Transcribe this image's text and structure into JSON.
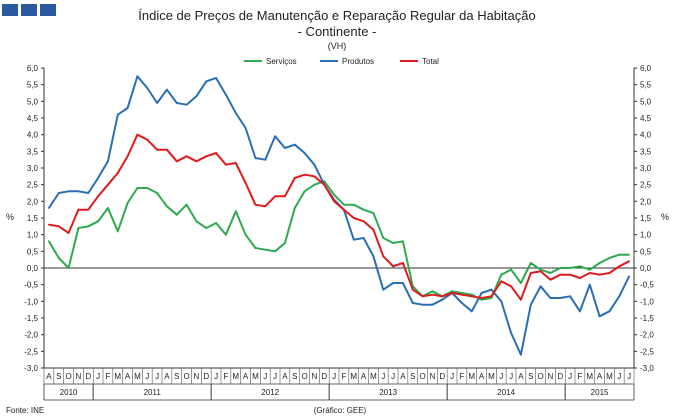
{
  "chart_data": {
    "type": "line",
    "title": "Índice de Preços de Manutenção e Reparação Regular da Habitação",
    "subtitle": "- Continente -",
    "unit_label": "(VH)",
    "ylabel_left": "%",
    "ylabel_right": "%",
    "ylim": [
      -3.0,
      6.0
    ],
    "yticks": [
      "6,0",
      "5,5",
      "5,0",
      "4,5",
      "4,0",
      "3,5",
      "3,0",
      "2,5",
      "2,0",
      "1,5",
      "1,0",
      "0,5",
      "0,0",
      "-0,5",
      "-1,0",
      "-1,5",
      "-2,0",
      "-2,5",
      "-3,0"
    ],
    "grid": false,
    "legend_position": "top",
    "colors": {
      "Serviços": "#2eaa4f",
      "Produtos": "#2a6fb4",
      "Total": "#e01b1b"
    },
    "x": [
      "2010-08",
      "2010-09",
      "2010-10",
      "2010-11",
      "2010-12",
      "2011-01",
      "2011-02",
      "2011-03",
      "2011-04",
      "2011-05",
      "2011-06",
      "2011-07",
      "2011-08",
      "2011-09",
      "2011-10",
      "2011-11",
      "2011-12",
      "2012-01",
      "2012-02",
      "2012-03",
      "2012-04",
      "2012-05",
      "2012-06",
      "2012-07",
      "2012-08",
      "2012-09",
      "2012-10",
      "2012-11",
      "2012-12",
      "2013-01",
      "2013-02",
      "2013-03",
      "2013-04",
      "2013-05",
      "2013-06",
      "2013-07",
      "2013-08",
      "2013-09",
      "2013-10",
      "2013-11",
      "2013-12",
      "2014-01",
      "2014-02",
      "2014-03",
      "2014-04",
      "2014-05",
      "2014-06",
      "2014-07",
      "2014-08",
      "2014-09",
      "2014-10",
      "2014-11",
      "2014-12",
      "2015-01",
      "2015-02",
      "2015-03",
      "2015-04",
      "2015-05",
      "2015-06",
      "2015-07"
    ],
    "x_month_labels": [
      "A",
      "S",
      "O",
      "N",
      "D",
      "J",
      "F",
      "M",
      "A",
      "M",
      "J",
      "J",
      "A",
      "S",
      "O",
      "N",
      "D",
      "J",
      "F",
      "M",
      "A",
      "M",
      "J",
      "J",
      "A",
      "S",
      "O",
      "N",
      "D",
      "J",
      "F",
      "M",
      "A",
      "M",
      "J",
      "J",
      "A",
      "S",
      "O",
      "N",
      "D",
      "J",
      "F",
      "M",
      "A",
      "M",
      "J",
      "J",
      "A",
      "S",
      "O",
      "N",
      "D",
      "J",
      "F",
      "M",
      "A",
      "M",
      "J",
      "J"
    ],
    "x_year_groups": [
      {
        "label": "2010",
        "start": 0,
        "end": 4
      },
      {
        "label": "2011",
        "start": 5,
        "end": 16
      },
      {
        "label": "2012",
        "start": 17,
        "end": 28
      },
      {
        "label": "2013",
        "start": 29,
        "end": 40
      },
      {
        "label": "2014",
        "start": 41,
        "end": 52
      },
      {
        "label": "2015",
        "start": 53,
        "end": 59
      }
    ],
    "series": [
      {
        "name": "Serviços",
        "values": [
          0.8,
          0.3,
          0.0,
          1.2,
          1.25,
          1.4,
          1.8,
          1.1,
          1.95,
          2.4,
          2.4,
          2.25,
          1.85,
          1.6,
          1.9,
          1.4,
          1.2,
          1.35,
          1.0,
          1.7,
          1.0,
          0.6,
          0.55,
          0.5,
          0.75,
          1.8,
          2.3,
          2.5,
          2.6,
          2.2,
          1.9,
          1.9,
          1.75,
          1.65,
          0.9,
          0.75,
          0.8,
          -0.55,
          -0.85,
          -0.7,
          -0.85,
          -0.7,
          -0.75,
          -0.8,
          -0.95,
          -0.9,
          -0.2,
          -0.05,
          -0.45,
          0.15,
          -0.05,
          -0.15,
          0.0,
          0.0,
          0.05,
          -0.05,
          0.15,
          0.3,
          0.4,
          0.4
        ]
      },
      {
        "name": "Produtos",
        "values": [
          1.8,
          2.25,
          2.3,
          2.3,
          2.25,
          2.7,
          3.2,
          4.6,
          4.8,
          5.75,
          5.4,
          4.95,
          5.35,
          4.95,
          4.9,
          5.15,
          5.6,
          5.7,
          5.2,
          4.65,
          4.2,
          3.3,
          3.25,
          3.95,
          3.6,
          3.7,
          3.45,
          3.1,
          2.5,
          2.05,
          1.75,
          0.85,
          0.9,
          0.35,
          -0.65,
          -0.45,
          -0.45,
          -1.05,
          -1.1,
          -1.1,
          -0.95,
          -0.75,
          -1.05,
          -1.3,
          -0.75,
          -0.65,
          -1.0,
          -1.95,
          -2.6,
          -1.1,
          -0.55,
          -0.9,
          -0.9,
          -0.85,
          -1.3,
          -0.5,
          -1.45,
          -1.3,
          -0.85,
          -0.25
        ]
      },
      {
        "name": "Total",
        "values": [
          1.3,
          1.25,
          1.05,
          1.75,
          1.75,
          2.15,
          2.5,
          2.85,
          3.35,
          4.0,
          3.85,
          3.55,
          3.55,
          3.2,
          3.35,
          3.2,
          3.35,
          3.45,
          3.1,
          3.15,
          2.55,
          1.9,
          1.85,
          2.15,
          2.15,
          2.7,
          2.8,
          2.75,
          2.5,
          2.0,
          1.75,
          1.5,
          1.4,
          1.15,
          0.35,
          0.05,
          0.15,
          -0.65,
          -0.85,
          -0.8,
          -0.85,
          -0.75,
          -0.8,
          -0.85,
          -0.9,
          -0.85,
          -0.4,
          -0.55,
          -0.95,
          -0.15,
          -0.1,
          -0.35,
          -0.2,
          -0.2,
          -0.3,
          -0.15,
          -0.2,
          -0.15,
          0.05,
          0.2
        ]
      }
    ]
  },
  "footer": {
    "source": "Fonte: INE",
    "credit": "(Gráfico: GEE)"
  }
}
